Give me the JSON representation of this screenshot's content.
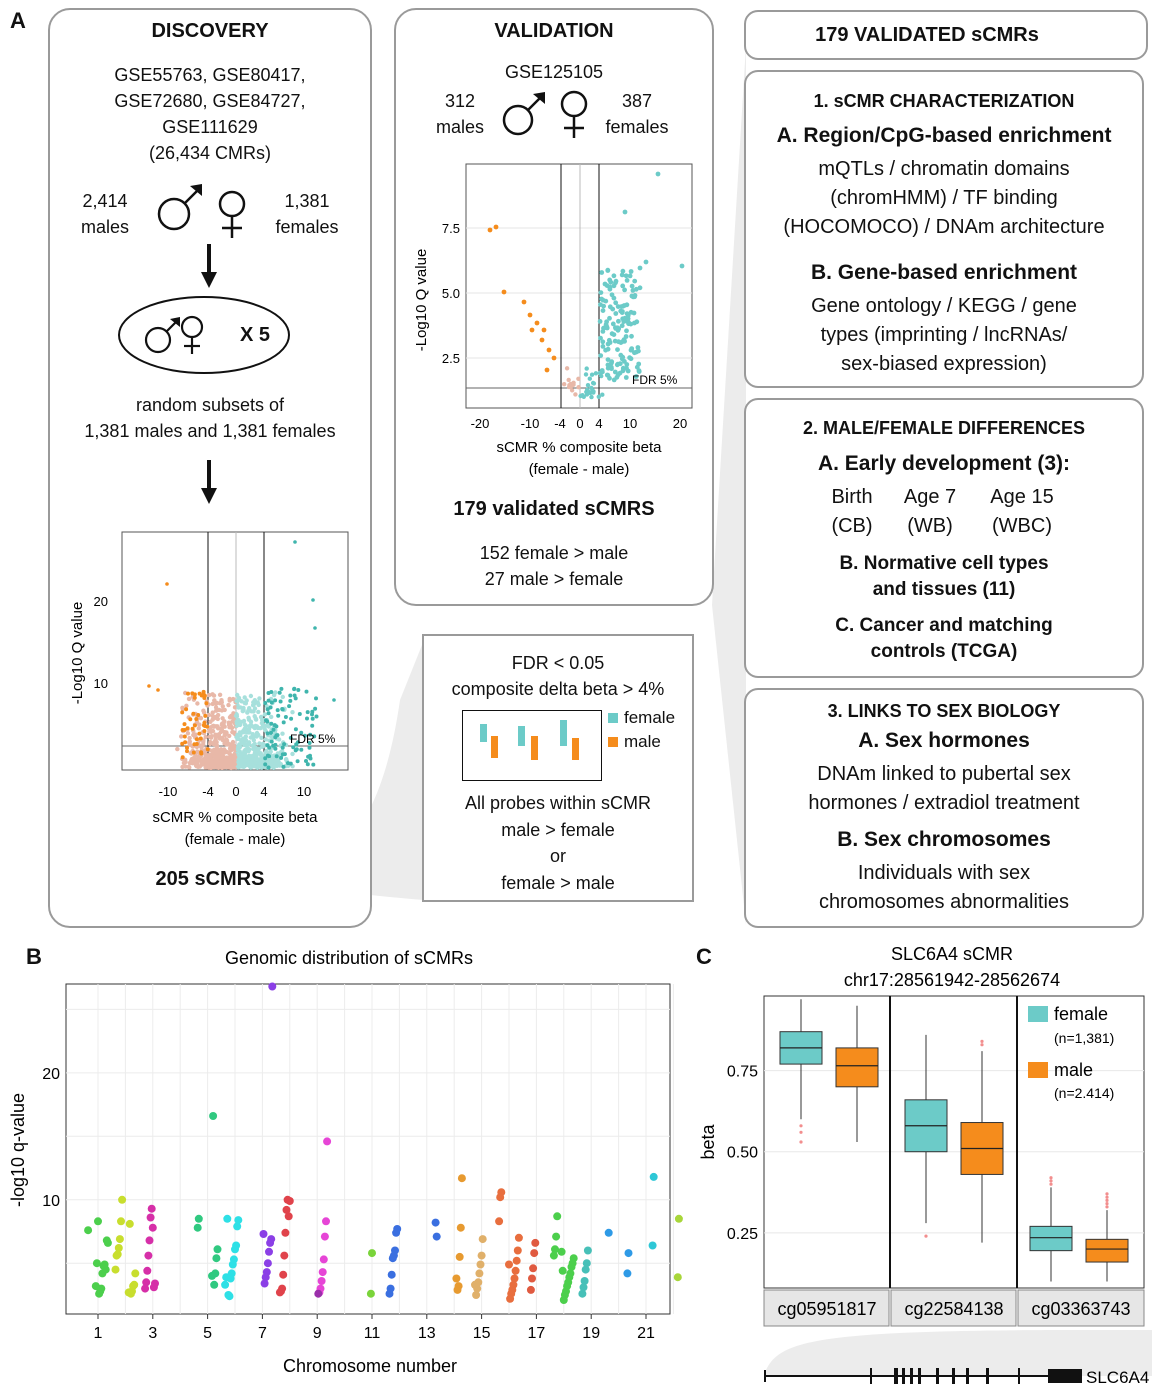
{
  "panel_letters": {
    "a": "A",
    "b": "B",
    "c": "C"
  },
  "discovery": {
    "title": "DISCOVERY",
    "datasets": [
      "GSE55763, GSE80417,",
      "GSE72680, GSE84727,",
      "GSE111629",
      "(26,434 CMRs)"
    ],
    "males_count": "2,414",
    "males_label": "males",
    "females_count": "1,381",
    "females_label": "females",
    "times": "X 5",
    "subsets": [
      "random subsets of",
      "1,381 males and 1,381 females"
    ],
    "result": "205 sCMRS",
    "volcano": {
      "ylabel": "-Log10 Q value",
      "xlabel": [
        "sCMR % composite beta",
        "(female - male)"
      ],
      "fdr": "FDR 5%",
      "xticks": [
        "-10",
        "-4",
        "0",
        "4",
        "10"
      ],
      "yticks": [
        "10",
        "20"
      ]
    }
  },
  "validation": {
    "title": "VALIDATION",
    "dataset": "GSE125105",
    "males_count": "312",
    "males_label": "males",
    "females_count": "387",
    "females_label": "females",
    "result": "179 validated sCMRS",
    "female_gt_male": "152 female > male",
    "male_gt_female": "27 male > female",
    "volcano": {
      "ylabel": "-Log10 Q value",
      "xlabel": [
        "sCMR % composite beta",
        "(female - male)"
      ],
      "fdr": "FDR 5%",
      "xticks": [
        "-20",
        "-10",
        "-4",
        "0",
        "4",
        "10",
        "20"
      ],
      "yticks": [
        "2.5",
        "5.0",
        "7.5"
      ]
    }
  },
  "criteria": {
    "fdr": "FDR < 0.05",
    "delta": "composite delta beta > 4%",
    "legend_female": "female",
    "legend_male": "male",
    "probes": [
      "All probes within sCMR",
      "male > female",
      "or",
      "female > male"
    ]
  },
  "right": {
    "header": "179 VALIDATED sCMRs",
    "s1": {
      "title": "1. sCMR CHARACTERIZATION",
      "a_title": "A. Region/CpG-based enrichment",
      "a_text": [
        "mQTLs / chromatin domains",
        "(chromHMM) / TF binding",
        "(HOCOMOCO) / DNAm architecture"
      ],
      "b_title": "B. Gene-based enrichment",
      "b_text": [
        "Gene ontology / KEGG / gene",
        "types (imprinting / lncRNAs/",
        "sex-biased expression)"
      ]
    },
    "s2": {
      "title": "2. MALE/FEMALE DIFFERENCES",
      "a_title": "A. Early development (3):",
      "ages": [
        {
          "age": "Birth",
          "tissue": "(CB)"
        },
        {
          "age": "Age 7",
          "tissue": "(WB)"
        },
        {
          "age": "Age 15",
          "tissue": "(WBC)"
        }
      ],
      "b_title": [
        "B. Normative cell types",
        "and tissues (11)"
      ],
      "c_title": [
        "C. Cancer and matching",
        "controls (TCGA)"
      ]
    },
    "s3": {
      "title": "3. LINKS TO SEX BIOLOGY",
      "a_title": "A. Sex hormones",
      "a_text": [
        "DNAm linked to pubertal sex",
        "hormones / extradiol treatment"
      ],
      "b_title": "B. Sex chromosomes",
      "b_text": [
        "Individuals with sex",
        "chromosomes abnormalities"
      ]
    }
  },
  "panel_b_chart": {
    "type": "scatter",
    "title": "Genomic distribution of sCMRs",
    "xlabel": "Chromosome number",
    "ylabel": "-log10 q-value",
    "xticks": [
      "1",
      "3",
      "5",
      "7",
      "9",
      "11",
      "13",
      "15",
      "17",
      "19",
      "21"
    ],
    "yticks": [
      "10",
      "20"
    ],
    "ylim": [
      1,
      27
    ],
    "grid": true,
    "points": [
      [
        1,
        7.6,
        "#4ccf4c"
      ],
      [
        1,
        6.6,
        "#4ccf4c"
      ],
      [
        1,
        6.8,
        "#4ccf4c"
      ],
      [
        1,
        4.5,
        "#4ccf4c"
      ],
      [
        1,
        4.9,
        "#4ccf4c"
      ],
      [
        1,
        4.8,
        "#4ccf4c"
      ],
      [
        1,
        4.2,
        "#4ccf4c"
      ],
      [
        1,
        3.0,
        "#4ccf4c"
      ],
      [
        1,
        2.8,
        "#4ccf4c"
      ],
      [
        1,
        2.6,
        "#4ccf4c"
      ],
      [
        1,
        8.3,
        "#4ccf4c"
      ],
      [
        1,
        5.0,
        "#4ccf4c"
      ],
      [
        1,
        3.2,
        "#4ccf4c"
      ],
      [
        2,
        10.0,
        "#c8de2e"
      ],
      [
        2,
        8.3,
        "#c8de2e"
      ],
      [
        2,
        6.9,
        "#c8de2e"
      ],
      [
        2,
        6.2,
        "#c8de2e"
      ],
      [
        2,
        5.7,
        "#c8de2e"
      ],
      [
        2,
        5.6,
        "#c8de2e"
      ],
      [
        2,
        4.5,
        "#c8de2e"
      ],
      [
        2,
        4.2,
        "#c8de2e"
      ],
      [
        2,
        3.3,
        "#c8de2e"
      ],
      [
        2,
        3.2,
        "#c8de2e"
      ],
      [
        2,
        2.8,
        "#c8de2e"
      ],
      [
        2,
        2.6,
        "#c8de2e"
      ],
      [
        2,
        8.1,
        "#c8de2e"
      ],
      [
        2,
        2.7,
        "#c8de2e"
      ],
      [
        3,
        3.4,
        "#d62fa8"
      ],
      [
        3,
        3.1,
        "#d62fa8"
      ],
      [
        3,
        7.8,
        "#d62fa8"
      ],
      [
        3,
        9.3,
        "#d62fa8"
      ],
      [
        3,
        8.6,
        "#d62fa8"
      ],
      [
        3,
        6.8,
        "#d62fa8"
      ],
      [
        3,
        5.6,
        "#d62fa8"
      ],
      [
        3,
        4.4,
        "#d62fa8"
      ],
      [
        3,
        3.5,
        "#d62fa8"
      ],
      [
        3,
        3.0,
        "#d62fa8"
      ],
      [
        5,
        8.5,
        "#30c980"
      ],
      [
        5,
        7.8,
        "#30c980"
      ],
      [
        5,
        6.1,
        "#30c980"
      ],
      [
        5,
        5.4,
        "#30c980"
      ],
      [
        5,
        4.2,
        "#30c980"
      ],
      [
        5,
        3.3,
        "#30c980"
      ],
      [
        5,
        16.6,
        "#30c980"
      ],
      [
        5,
        4.0,
        "#30c980"
      ],
      [
        6,
        8.4,
        "#2ee0e6"
      ],
      [
        6,
        7.9,
        "#2ee0e6"
      ],
      [
        6,
        6.4,
        "#2ee0e6"
      ],
      [
        6,
        6.1,
        "#2ee0e6"
      ],
      [
        6,
        5.3,
        "#2ee0e6"
      ],
      [
        6,
        4.9,
        "#2ee0e6"
      ],
      [
        6,
        4.2,
        "#2ee0e6"
      ],
      [
        6,
        3.8,
        "#2ee0e6"
      ],
      [
        6,
        2.4,
        "#2ee0e6"
      ],
      [
        6,
        2.5,
        "#2ee0e6"
      ],
      [
        6,
        8.5,
        "#2ee0e6"
      ],
      [
        6,
        3.9,
        "#2ee0e6"
      ],
      [
        6,
        3.3,
        "#2ee0e6"
      ],
      [
        7,
        26.8,
        "#8b3fe6"
      ],
      [
        7,
        6.9,
        "#8b3fe6"
      ],
      [
        7,
        6.6,
        "#8b3fe6"
      ],
      [
        7,
        5.9,
        "#8b3fe6"
      ],
      [
        7,
        5.0,
        "#8b3fe6"
      ],
      [
        7,
        4.3,
        "#8b3fe6"
      ],
      [
        7,
        3.9,
        "#8b3fe6"
      ],
      [
        7,
        3.4,
        "#8b3fe6"
      ],
      [
        7,
        7.3,
        "#8b3fe6"
      ],
      [
        8,
        9.9,
        "#e0434b"
      ],
      [
        8,
        8.7,
        "#e0434b"
      ],
      [
        8,
        10.0,
        "#e0434b"
      ],
      [
        8,
        9.2,
        "#e0434b"
      ],
      [
        8,
        7.4,
        "#e0434b"
      ],
      [
        8,
        5.6,
        "#e0434b"
      ],
      [
        8,
        4.1,
        "#e0434b"
      ],
      [
        8,
        3.0,
        "#e0434b"
      ],
      [
        8,
        2.8,
        "#e0434b"
      ],
      [
        8,
        2.7,
        "#e0434b"
      ],
      [
        9,
        14.6,
        "#e645d6"
      ],
      [
        9,
        8.3,
        "#e645d6"
      ],
      [
        9,
        7.1,
        "#e645d6"
      ],
      [
        9,
        5.3,
        "#e645d6"
      ],
      [
        9,
        4.3,
        "#e645d6"
      ],
      [
        9,
        3.6,
        "#e645d6"
      ],
      [
        9,
        3.0,
        "#e645d6"
      ],
      [
        9,
        2.7,
        "#e645d6"
      ],
      [
        9,
        2.6,
        "#9a2faa"
      ],
      [
        11,
        5.8,
        "#7ad43a"
      ],
      [
        11,
        2.6,
        "#7ad43a"
      ],
      [
        12,
        7.7,
        "#3a6fe0"
      ],
      [
        12,
        7.4,
        "#3a6fe0"
      ],
      [
        12,
        6.0,
        "#3a6fe0"
      ],
      [
        12,
        5.6,
        "#3a6fe0"
      ],
      [
        12,
        5.4,
        "#3a6fe0"
      ],
      [
        12,
        4.1,
        "#3a6fe0"
      ],
      [
        12,
        3.0,
        "#3a6fe0"
      ],
      [
        12,
        2.6,
        "#3a6fe0"
      ],
      [
        13,
        7.1,
        "#3a6fe0"
      ],
      [
        13,
        8.2,
        "#3a6fe0"
      ],
      [
        14,
        11.7,
        "#e79a30"
      ],
      [
        14,
        7.8,
        "#e79a30"
      ],
      [
        14,
        5.5,
        "#e79a30"
      ],
      [
        14,
        3.2,
        "#e79a30"
      ],
      [
        14,
        2.9,
        "#e79a30"
      ],
      [
        14,
        3.8,
        "#e79a30"
      ],
      [
        15,
        6.9,
        "#e0b06a"
      ],
      [
        15,
        5.6,
        "#e0b06a"
      ],
      [
        15,
        4.9,
        "#e0b06a"
      ],
      [
        15,
        4.2,
        "#e0b06a"
      ],
      [
        15,
        3.5,
        "#e0b06a"
      ],
      [
        15,
        3.0,
        "#e0b06a"
      ],
      [
        15,
        2.5,
        "#e0b06a"
      ],
      [
        15,
        3.3,
        "#e0b06a"
      ],
      [
        16,
        10.6,
        "#e86e3e"
      ],
      [
        16,
        10.2,
        "#e86e3e"
      ],
      [
        16,
        8.3,
        "#e86e3e"
      ],
      [
        16,
        7.0,
        "#e86e3e"
      ],
      [
        16,
        6.0,
        "#e86e3e"
      ],
      [
        16,
        5.2,
        "#e86e3e"
      ],
      [
        16,
        4.4,
        "#e86e3e"
      ],
      [
        16,
        3.8,
        "#e86e3e"
      ],
      [
        16,
        3.3,
        "#e86e3e"
      ],
      [
        16,
        2.9,
        "#e86e3e"
      ],
      [
        16,
        2.6,
        "#e86e3e"
      ],
      [
        16,
        2.2,
        "#e86e3e"
      ],
      [
        16,
        4.9,
        "#e86e3e"
      ],
      [
        17,
        6.6,
        "#e05a40"
      ],
      [
        17,
        5.8,
        "#e05a40"
      ],
      [
        17,
        4.6,
        "#e05a40"
      ],
      [
        17,
        3.8,
        "#e05a40"
      ],
      [
        17,
        2.9,
        "#e05a40"
      ],
      [
        18,
        8.7,
        "#4ccf4c"
      ],
      [
        18,
        7.1,
        "#4ccf4c"
      ],
      [
        18,
        6.1,
        "#4ccf4c"
      ],
      [
        18,
        5.6,
        "#4ccf4c"
      ],
      [
        18,
        5.4,
        "#4ccf4c"
      ],
      [
        18,
        5.0,
        "#4ccf4c"
      ],
      [
        18,
        4.7,
        "#4ccf4c"
      ],
      [
        18,
        4.2,
        "#4ccf4c"
      ],
      [
        18,
        3.9,
        "#4ccf4c"
      ],
      [
        18,
        3.5,
        "#4ccf4c"
      ],
      [
        18,
        3.2,
        "#4ccf4c"
      ],
      [
        18,
        2.8,
        "#4ccf4c"
      ],
      [
        18,
        2.5,
        "#4ccf4c"
      ],
      [
        18,
        2.1,
        "#4ccf4c"
      ],
      [
        18,
        4.4,
        "#4ccf4c"
      ],
      [
        18,
        5.9,
        "#4ccf4c"
      ],
      [
        19,
        6.0,
        "#47c0b8"
      ],
      [
        19,
        5.0,
        "#47c0b8"
      ],
      [
        19,
        4.5,
        "#47c0b8"
      ],
      [
        19,
        3.6,
        "#47c0b8"
      ],
      [
        19,
        3.1,
        "#47c0b8"
      ],
      [
        19,
        2.6,
        "#47c0b8"
      ],
      [
        20,
        7.4,
        "#2e9ae6"
      ],
      [
        20,
        5.8,
        "#2e9ae6"
      ],
      [
        20,
        4.2,
        "#2e9ae6"
      ],
      [
        21,
        11.8,
        "#2ec7d6"
      ],
      [
        21,
        6.4,
        "#2ec7d6"
      ],
      [
        22,
        8.5,
        "#a8d63a"
      ],
      [
        22,
        3.9,
        "#a8d63a"
      ]
    ]
  },
  "panel_c_chart": {
    "type": "box",
    "title": [
      "SLC6A4 sCMR",
      "chr17:28561942-28562674"
    ],
    "ylabel": "beta",
    "yticks": [
      "0.25",
      "0.50",
      "0.75"
    ],
    "ylim": [
      0.08,
      0.98
    ],
    "probes": [
      "cg05951817",
      "cg22584138",
      "cg03363743"
    ],
    "legend": [
      {
        "label": "female",
        "n": "(n=1,381)",
        "color": "#6ccbc8"
      },
      {
        "label": "male",
        "n": "(n=2.414)",
        "color": "#f58c1c"
      }
    ],
    "boxes": [
      {
        "probe": "cg05951817",
        "sex": "female",
        "min": 0.6,
        "q1": 0.77,
        "median": 0.82,
        "q3": 0.87,
        "max": 0.97,
        "outliers": [
          0.58,
          0.56,
          0.53
        ]
      },
      {
        "probe": "cg05951817",
        "sex": "male",
        "min": 0.53,
        "q1": 0.7,
        "median": 0.765,
        "q3": 0.82,
        "max": 0.95,
        "outliers": []
      },
      {
        "probe": "cg22584138",
        "sex": "female",
        "min": 0.28,
        "q1": 0.5,
        "median": 0.58,
        "q3": 0.66,
        "max": 0.86,
        "outliers": [
          0.24
        ]
      },
      {
        "probe": "cg22584138",
        "sex": "male",
        "min": 0.22,
        "q1": 0.43,
        "median": 0.51,
        "q3": 0.59,
        "max": 0.81,
        "outliers": [
          0.83,
          0.84
        ]
      },
      {
        "probe": "cg03363743",
        "sex": "female",
        "min": 0.1,
        "q1": 0.195,
        "median": 0.235,
        "q3": 0.27,
        "max": 0.39,
        "outliers": [
          0.4,
          0.41,
          0.42
        ]
      },
      {
        "probe": "cg03363743",
        "sex": "male",
        "min": 0.1,
        "q1": 0.16,
        "median": 0.2,
        "q3": 0.23,
        "max": 0.32,
        "outliers": [
          0.33,
          0.34,
          0.35,
          0.36,
          0.37
        ]
      }
    ],
    "gene_label": "SLC6A4"
  },
  "colors": {
    "female": "#6ccbc8",
    "male": "#f58c1c",
    "border": "#9a9a9a"
  }
}
